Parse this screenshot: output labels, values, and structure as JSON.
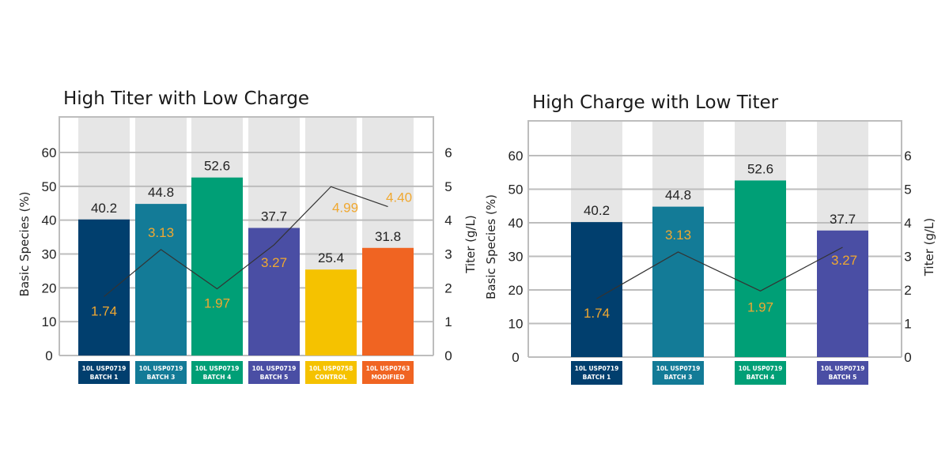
{
  "chart_data": [
    {
      "type": "bar",
      "title": "High Titer with Low Charge",
      "ylabel": "Basic Species (%)",
      "y2label": "Titer (g/L)",
      "ylim": [
        0,
        60
      ],
      "y2lim": [
        0,
        6
      ],
      "yticks": [
        "0",
        "10",
        "20",
        "30",
        "40",
        "50",
        "60"
      ],
      "y2ticks": [
        "0",
        "1",
        "2",
        "3",
        "4",
        "5",
        "6"
      ],
      "grid": true,
      "categories": [
        [
          "10L USP0719",
          "BATCH 1"
        ],
        [
          "10L USP0719",
          "BATCH 3"
        ],
        [
          "10L USP0719",
          "BATCH 4"
        ],
        [
          "10L USP0719",
          "BATCH 5"
        ],
        [
          "10L USP0758",
          "CONTROL"
        ],
        [
          "10L USP0763",
          "MODIFIED"
        ]
      ],
      "colors": [
        "#013f6e",
        "#137b97",
        "#009f76",
        "#4a4ea4",
        "#f5c200",
        "#f06422"
      ],
      "series": [
        {
          "axis": "left",
          "type": "bar",
          "values": [
            40.2,
            44.8,
            52.6,
            37.7,
            25.4,
            31.8
          ],
          "labels": [
            "40.2",
            "44.8",
            "52.6",
            "37.7",
            "25.4",
            "31.8"
          ]
        },
        {
          "axis": "right",
          "type": "line",
          "color": "#333333",
          "label_color": "#f0a830",
          "values": [
            1.74,
            3.13,
            1.97,
            3.27,
            4.99,
            4.4
          ],
          "labels": [
            "1.74",
            "3.13",
            "1.97",
            "3.27",
            "4.99",
            "4.40"
          ]
        }
      ]
    },
    {
      "type": "bar",
      "title": "High Charge with Low Titer",
      "ylabel": "Basic Species (%)",
      "y2label": "Titer (g/L)",
      "ylim": [
        0,
        60
      ],
      "y2lim": [
        0,
        6
      ],
      "yticks": [
        "0",
        "10",
        "20",
        "30",
        "40",
        "50",
        "60"
      ],
      "y2ticks": [
        "0",
        "1",
        "2",
        "3",
        "4",
        "5",
        "6"
      ],
      "grid": true,
      "categories": [
        [
          "10L USP0719",
          "BATCH 1"
        ],
        [
          "10L USP0719",
          "BATCH 3"
        ],
        [
          "10L USP0719",
          "BATCH 4"
        ],
        [
          "10L USP0719",
          "BATCH 5"
        ]
      ],
      "colors": [
        "#013f6e",
        "#137b97",
        "#009f76",
        "#4a4ea4"
      ],
      "series": [
        {
          "axis": "left",
          "type": "bar",
          "values": [
            40.2,
            44.8,
            52.6,
            37.7
          ],
          "labels": [
            "40.2",
            "44.8",
            "52.6",
            "37.7"
          ]
        },
        {
          "axis": "right",
          "type": "line",
          "color": "#333333",
          "label_color": "#f0a830",
          "values": [
            1.74,
            3.13,
            1.97,
            3.27
          ],
          "labels": [
            "1.74",
            "3.13",
            "1.97",
            "3.27"
          ]
        }
      ]
    }
  ]
}
